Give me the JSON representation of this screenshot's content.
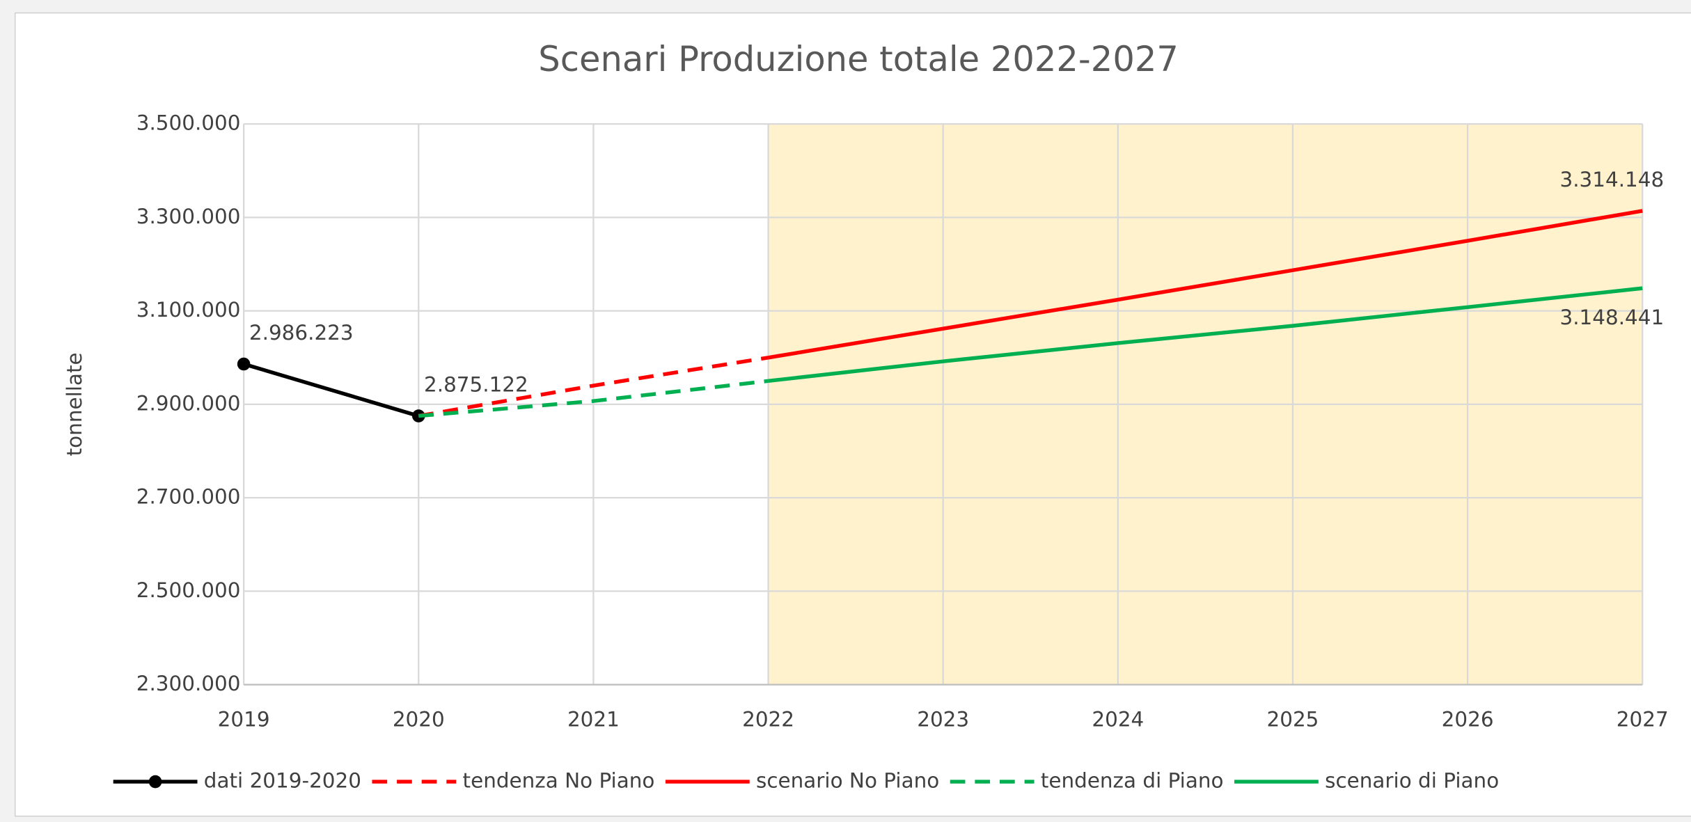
{
  "chart_data": {
    "type": "line",
    "title": "Scenari Produzione totale 2022-2027",
    "ylabel": "tonnellate",
    "x": [
      2019,
      2020,
      2021,
      2022,
      2023,
      2024,
      2025,
      2026,
      2027
    ],
    "xlim": [
      2019,
      2027
    ],
    "xticks": [
      2019,
      2020,
      2021,
      2022,
      2023,
      2024,
      2025,
      2026,
      2027
    ],
    "ylim": [
      2300000,
      3500000
    ],
    "yticks": [
      {
        "value": 2300000,
        "label": "2.300.000"
      },
      {
        "value": 2500000,
        "label": "2.500.000"
      },
      {
        "value": 2700000,
        "label": "2.700.000"
      },
      {
        "value": 2900000,
        "label": "2.900.000"
      },
      {
        "value": 3100000,
        "label": "3.100.000"
      },
      {
        "value": 3300000,
        "label": "3.300.000"
      },
      {
        "value": 3500000,
        "label": "3.500.000"
      }
    ],
    "grid": true,
    "legend": "bottom",
    "highlight": {
      "x": [
        2022,
        2027
      ],
      "color": "#fff2cc"
    },
    "series": [
      {
        "name": "dati 2019-2020",
        "color": "#000000",
        "dash": false,
        "marker": true,
        "values": [
          2986223,
          2875122,
          null,
          null,
          null,
          null,
          null,
          null,
          null
        ],
        "value_labels": [
          "2.986.223",
          "2.875.122",
          null,
          null,
          null,
          null,
          null,
          null,
          null
        ]
      },
      {
        "name": "tendenza No Piano",
        "color": "#ff0000",
        "dash": true,
        "marker": false,
        "values": [
          null,
          2875122,
          2940000,
          3000000,
          null,
          null,
          null,
          null,
          null
        ]
      },
      {
        "name": "scenario No Piano",
        "color": "#ff0000",
        "dash": false,
        "marker": false,
        "values": [
          null,
          null,
          null,
          3000000,
          3062000,
          3124000,
          3187000,
          3250000,
          3314148
        ],
        "value_labels": [
          null,
          null,
          null,
          null,
          null,
          null,
          null,
          null,
          "3.314.148"
        ]
      },
      {
        "name": "tendenza di Piano",
        "color": "#00b050",
        "dash": true,
        "marker": false,
        "values": [
          null,
          2875122,
          2907000,
          2950000,
          null,
          null,
          null,
          null,
          null
        ]
      },
      {
        "name": "scenario di Piano",
        "color": "#00b050",
        "dash": false,
        "marker": false,
        "values": [
          null,
          null,
          null,
          2950000,
          2992000,
          3031000,
          3068000,
          3108000,
          3148441
        ],
        "value_labels": [
          null,
          null,
          null,
          null,
          null,
          null,
          null,
          null,
          "3.148.441"
        ]
      }
    ]
  }
}
